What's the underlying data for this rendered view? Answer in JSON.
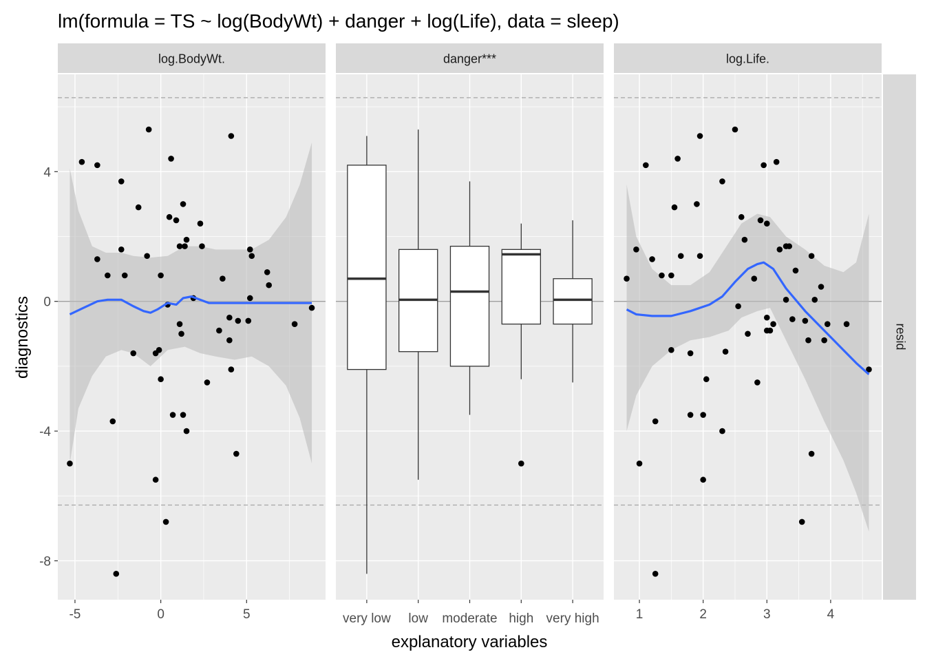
{
  "chart_data": {
    "type": "faceted-scatter-box",
    "title": "lm(formula = TS ~ log(BodyWt) + danger + log(Life), data = sleep)",
    "xlabel": "explanatory variables",
    "ylabel": "diagnostics",
    "row_strip": "resid",
    "ylim": [
      -9.2,
      7.0
    ],
    "y_ticks": [
      4,
      0,
      -4,
      -8
    ],
    "y_tick_labels": [
      "4",
      "0",
      "-4",
      "-8"
    ],
    "reference_lines": {
      "zero": 0,
      "dashed": [
        6.28,
        -6.28
      ]
    },
    "colors": {
      "panel_bg": "#ebebeb",
      "grid": "#ffffff",
      "strip_bg": "#d9d9d9",
      "point": "#000000",
      "smooth": "#3366ff",
      "ribbon": "#bdbdbd",
      "zero_line": "#9e9e9e",
      "dashed_line": "#a6a6a6"
    },
    "panels": [
      {
        "strip": "log.BodyWt.",
        "kind": "scatter",
        "xlim": [
          -6.0,
          9.6
        ],
        "x_ticks": [
          -5,
          0,
          5
        ],
        "x_tick_labels": [
          "-5",
          "0",
          "5"
        ],
        "points": [
          [
            -5.3,
            -5.0
          ],
          [
            -4.6,
            4.3
          ],
          [
            -3.7,
            4.2
          ],
          [
            -3.7,
            1.3
          ],
          [
            -3.1,
            0.8
          ],
          [
            -2.8,
            -3.7
          ],
          [
            -2.6,
            -8.4
          ],
          [
            -2.3,
            3.7
          ],
          [
            -2.3,
            1.6
          ],
          [
            -2.1,
            0.8
          ],
          [
            -1.6,
            -1.6
          ],
          [
            -1.3,
            2.9
          ],
          [
            -0.8,
            1.4
          ],
          [
            -0.7,
            5.3
          ],
          [
            -0.3,
            -5.5
          ],
          [
            -0.3,
            -1.6
          ],
          [
            -0.1,
            -1.5
          ],
          [
            0.0,
            0.8
          ],
          [
            0.0,
            -2.4
          ],
          [
            0.3,
            -6.8
          ],
          [
            0.4,
            -0.1
          ],
          [
            0.5,
            2.6
          ],
          [
            0.6,
            4.4
          ],
          [
            0.7,
            -3.5
          ],
          [
            0.9,
            2.5
          ],
          [
            1.1,
            -0.7
          ],
          [
            1.1,
            1.7
          ],
          [
            1.2,
            -1.0
          ],
          [
            1.3,
            -3.5
          ],
          [
            1.3,
            3.0
          ],
          [
            1.4,
            1.7
          ],
          [
            1.5,
            -4.0
          ],
          [
            1.5,
            1.9
          ],
          [
            1.9,
            0.1
          ],
          [
            2.3,
            2.4
          ],
          [
            2.4,
            1.7
          ],
          [
            2.7,
            -2.5
          ],
          [
            3.4,
            -0.9
          ],
          [
            3.6,
            0.7
          ],
          [
            4.0,
            -0.5
          ],
          [
            4.0,
            -1.2
          ],
          [
            4.1,
            -2.1
          ],
          [
            4.1,
            5.1
          ],
          [
            4.4,
            -4.7
          ],
          [
            4.5,
            -0.6
          ],
          [
            5.1,
            -0.6
          ],
          [
            5.2,
            0.1
          ],
          [
            5.2,
            1.6
          ],
          [
            5.3,
            1.4
          ],
          [
            6.2,
            0.9
          ],
          [
            6.3,
            0.5
          ],
          [
            7.8,
            -0.7
          ],
          [
            8.8,
            -0.2
          ]
        ],
        "smooth": [
          [
            -5.3,
            -0.4
          ],
          [
            -4.5,
            -0.2
          ],
          [
            -3.7,
            0.0
          ],
          [
            -3.1,
            0.05
          ],
          [
            -2.3,
            0.05
          ],
          [
            -1.6,
            -0.15
          ],
          [
            -1.0,
            -0.3
          ],
          [
            -0.6,
            -0.35
          ],
          [
            -0.2,
            -0.25
          ],
          [
            0.4,
            -0.05
          ],
          [
            0.9,
            -0.1
          ],
          [
            1.3,
            0.1
          ],
          [
            1.8,
            0.15
          ],
          [
            2.3,
            0.05
          ],
          [
            2.8,
            -0.05
          ],
          [
            3.8,
            -0.05
          ],
          [
            5.0,
            -0.05
          ],
          [
            6.5,
            -0.05
          ],
          [
            8.8,
            -0.05
          ]
        ],
        "ribbon_upper": [
          [
            -5.3,
            4.1
          ],
          [
            -4.8,
            2.8
          ],
          [
            -4.0,
            1.7
          ],
          [
            -3.2,
            1.5
          ],
          [
            -2.3,
            1.5
          ],
          [
            -1.6,
            1.4
          ],
          [
            -0.6,
            1.35
          ],
          [
            0.4,
            1.4
          ],
          [
            1.4,
            1.7
          ],
          [
            2.3,
            1.7
          ],
          [
            3.2,
            1.6
          ],
          [
            4.3,
            1.6
          ],
          [
            5.3,
            1.6
          ],
          [
            6.3,
            1.9
          ],
          [
            7.3,
            2.6
          ],
          [
            8.1,
            3.6
          ],
          [
            8.8,
            4.9
          ]
        ],
        "ribbon_lower": [
          [
            -5.3,
            -5.0
          ],
          [
            -4.8,
            -3.3
          ],
          [
            -4.0,
            -2.3
          ],
          [
            -3.2,
            -1.7
          ],
          [
            -2.3,
            -1.5
          ],
          [
            -1.6,
            -1.6
          ],
          [
            -0.6,
            -2.0
          ],
          [
            0.4,
            -1.5
          ],
          [
            1.4,
            -1.4
          ],
          [
            2.3,
            -1.6
          ],
          [
            3.2,
            -1.7
          ],
          [
            4.3,
            -1.8
          ],
          [
            5.3,
            -1.7
          ],
          [
            6.3,
            -2.0
          ],
          [
            7.3,
            -2.6
          ],
          [
            8.1,
            -3.6
          ],
          [
            8.8,
            -5.0
          ]
        ]
      },
      {
        "strip": "danger***",
        "kind": "box",
        "categories": [
          "very low",
          "low",
          "moderate",
          "high",
          "very high"
        ],
        "boxes": [
          {
            "category": "very low",
            "whisker_low": -8.4,
            "q1": -2.1,
            "median": 0.7,
            "q3": 4.2,
            "whisker_high": 5.1,
            "outliers": []
          },
          {
            "category": "low",
            "whisker_low": -5.5,
            "q1": -1.55,
            "median": 0.05,
            "q3": 1.6,
            "whisker_high": 5.3,
            "outliers": []
          },
          {
            "category": "moderate",
            "whisker_low": -3.5,
            "q1": -2.0,
            "median": 0.3,
            "q3": 1.7,
            "whisker_high": 3.7,
            "outliers": []
          },
          {
            "category": "high",
            "whisker_low": -2.4,
            "q1": -0.7,
            "median": 1.45,
            "q3": 1.6,
            "whisker_high": 2.4,
            "outliers": [
              -5.0
            ]
          },
          {
            "category": "very high",
            "whisker_low": -2.5,
            "q1": -0.7,
            "median": 0.05,
            "q3": 0.7,
            "whisker_high": 2.5,
            "outliers": []
          }
        ]
      },
      {
        "strip": "log.Life.",
        "kind": "scatter",
        "xlim": [
          0.6,
          4.8
        ],
        "x_ticks": [
          1,
          2,
          3,
          4
        ],
        "x_tick_labels": [
          "1",
          "2",
          "3",
          "4"
        ],
        "points": [
          [
            0.8,
            0.7
          ],
          [
            0.95,
            1.6
          ],
          [
            1.0,
            -5.0
          ],
          [
            1.1,
            4.2
          ],
          [
            1.2,
            1.3
          ],
          [
            1.25,
            -3.7
          ],
          [
            1.25,
            -8.4
          ],
          [
            1.35,
            0.8
          ],
          [
            1.5,
            0.8
          ],
          [
            1.5,
            -1.5
          ],
          [
            1.55,
            2.9
          ],
          [
            1.6,
            4.4
          ],
          [
            1.65,
            1.4
          ],
          [
            1.8,
            -1.6
          ],
          [
            1.8,
            -3.5
          ],
          [
            1.9,
            3.0
          ],
          [
            1.95,
            1.4
          ],
          [
            1.95,
            5.1
          ],
          [
            2.0,
            -5.5
          ],
          [
            2.0,
            -3.5
          ],
          [
            2.05,
            -2.4
          ],
          [
            2.3,
            3.7
          ],
          [
            2.3,
            -4.0
          ],
          [
            2.35,
            -1.55
          ],
          [
            2.5,
            5.3
          ],
          [
            2.55,
            -0.15
          ],
          [
            2.6,
            2.6
          ],
          [
            2.65,
            1.9
          ],
          [
            2.7,
            -1.0
          ],
          [
            2.8,
            0.7
          ],
          [
            2.85,
            -2.5
          ],
          [
            2.9,
            2.5
          ],
          [
            2.95,
            4.2
          ],
          [
            3.0,
            2.4
          ],
          [
            3.0,
            -0.5
          ],
          [
            3.0,
            -0.9
          ],
          [
            3.05,
            -0.9
          ],
          [
            3.1,
            -0.7
          ],
          [
            3.15,
            4.3
          ],
          [
            3.2,
            1.6
          ],
          [
            3.3,
            1.7
          ],
          [
            3.3,
            0.05
          ],
          [
            3.35,
            1.7
          ],
          [
            3.4,
            -0.55
          ],
          [
            3.45,
            0.95
          ],
          [
            3.55,
            -6.8
          ],
          [
            3.6,
            -0.6
          ],
          [
            3.65,
            -1.2
          ],
          [
            3.7,
            1.4
          ],
          [
            3.7,
            -4.7
          ],
          [
            3.75,
            0.05
          ],
          [
            3.85,
            0.45
          ],
          [
            3.9,
            -1.2
          ],
          [
            3.95,
            -0.7
          ],
          [
            4.25,
            -0.7
          ],
          [
            4.6,
            -2.1
          ]
        ],
        "smooth": [
          [
            0.8,
            -0.25
          ],
          [
            0.95,
            -0.4
          ],
          [
            1.2,
            -0.45
          ],
          [
            1.5,
            -0.45
          ],
          [
            1.8,
            -0.3
          ],
          [
            2.1,
            -0.1
          ],
          [
            2.3,
            0.15
          ],
          [
            2.5,
            0.6
          ],
          [
            2.7,
            1.0
          ],
          [
            2.85,
            1.15
          ],
          [
            2.95,
            1.2
          ],
          [
            3.1,
            1.0
          ],
          [
            3.3,
            0.4
          ],
          [
            3.6,
            -0.3
          ],
          [
            3.9,
            -0.9
          ],
          [
            4.2,
            -1.5
          ],
          [
            4.4,
            -1.9
          ],
          [
            4.6,
            -2.25
          ]
        ],
        "ribbon_upper": [
          [
            0.8,
            3.6
          ],
          [
            0.95,
            2.0
          ],
          [
            1.2,
            1.0
          ],
          [
            1.5,
            0.5
          ],
          [
            1.8,
            0.5
          ],
          [
            2.1,
            0.9
          ],
          [
            2.4,
            1.8
          ],
          [
            2.6,
            2.4
          ],
          [
            2.85,
            2.7
          ],
          [
            3.05,
            2.6
          ],
          [
            3.3,
            2.0
          ],
          [
            3.6,
            1.6
          ],
          [
            3.9,
            1.1
          ],
          [
            4.2,
            0.9
          ],
          [
            4.4,
            1.2
          ],
          [
            4.6,
            2.7
          ]
        ],
        "ribbon_lower": [
          [
            0.8,
            -4.0
          ],
          [
            0.95,
            -2.9
          ],
          [
            1.2,
            -2.0
          ],
          [
            1.5,
            -1.5
          ],
          [
            1.8,
            -1.2
          ],
          [
            2.1,
            -1.1
          ],
          [
            2.4,
            -0.9
          ],
          [
            2.6,
            -0.5
          ],
          [
            2.85,
            -0.3
          ],
          [
            3.05,
            -0.2
          ],
          [
            3.3,
            -1.2
          ],
          [
            3.6,
            -2.4
          ],
          [
            3.9,
            -3.7
          ],
          [
            4.2,
            -4.9
          ],
          [
            4.4,
            -5.9
          ],
          [
            4.6,
            -7.1
          ]
        ]
      }
    ]
  }
}
